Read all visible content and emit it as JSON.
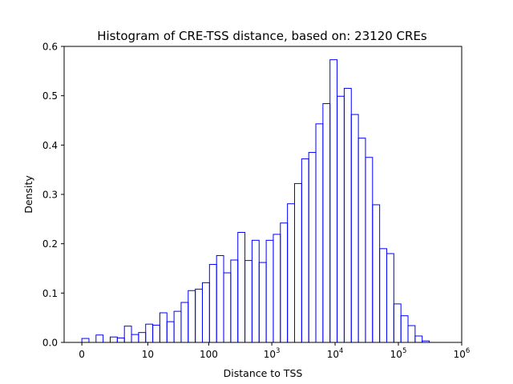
{
  "chart_data": {
    "type": "histogram",
    "title": "Histogram of CRE-TSS distance, based on: 23120 CREs",
    "xlabel": "Distance to TSS",
    "ylabel": "Density",
    "x_scale": "log (0 tick at left)",
    "ylim": [
      0,
      0.6
    ],
    "x_ticks": [
      {
        "value": 0,
        "label": "0",
        "base": "0",
        "exp": ""
      },
      {
        "value": 10,
        "label": "10",
        "base": "10",
        "exp": ""
      },
      {
        "value": 100,
        "label": "100",
        "base": "100",
        "exp": ""
      },
      {
        "value": 1000,
        "label": "10^3",
        "base": "10",
        "exp": "3"
      },
      {
        "value": 10000,
        "label": "10^4",
        "base": "10",
        "exp": "4"
      },
      {
        "value": 100000,
        "label": "10^5",
        "base": "10",
        "exp": "5"
      },
      {
        "value": 1000000,
        "label": "10^6",
        "base": "10",
        "exp": "6"
      }
    ],
    "y_ticks": [
      "0.0",
      "0.1",
      "0.2",
      "0.3",
      "0.4",
      "0.5",
      "0.6"
    ],
    "line_color": "#0000ff",
    "grid": false,
    "bin_edges_log10p1": [
      0.0,
      0.112,
      0.224,
      0.336,
      0.448,
      0.56,
      0.672,
      0.784,
      0.896,
      1.008,
      1.12,
      1.232,
      1.344,
      1.456,
      1.568,
      1.68,
      1.792,
      1.904,
      2.016,
      2.128,
      2.24,
      2.352,
      2.464,
      2.576,
      2.688,
      2.8,
      2.912,
      3.024,
      3.136,
      3.248,
      3.36,
      3.472,
      3.584,
      3.696,
      3.808,
      3.92,
      4.032,
      4.144,
      4.256,
      4.368,
      4.48,
      4.592,
      4.704,
      4.816,
      4.928,
      5.04,
      5.152,
      5.264,
      5.376,
      5.488,
      5.6,
      5.712
    ],
    "density": [
      0.008,
      0.0,
      0.015,
      0.0,
      0.011,
      0.009,
      0.033,
      0.016,
      0.02,
      0.037,
      0.035,
      0.06,
      0.042,
      0.063,
      0.081,
      0.105,
      0.108,
      0.121,
      0.158,
      0.176,
      0.141,
      0.167,
      0.223,
      0.166,
      0.207,
      0.162,
      0.207,
      0.219,
      0.242,
      0.281,
      0.322,
      0.372,
      0.385,
      0.443,
      0.484,
      0.573,
      0.499,
      0.515,
      0.462,
      0.414,
      0.375,
      0.279,
      0.19,
      0.18,
      0.078,
      0.054,
      0.034,
      0.013,
      0.003,
      0.0,
      0.0
    ]
  }
}
